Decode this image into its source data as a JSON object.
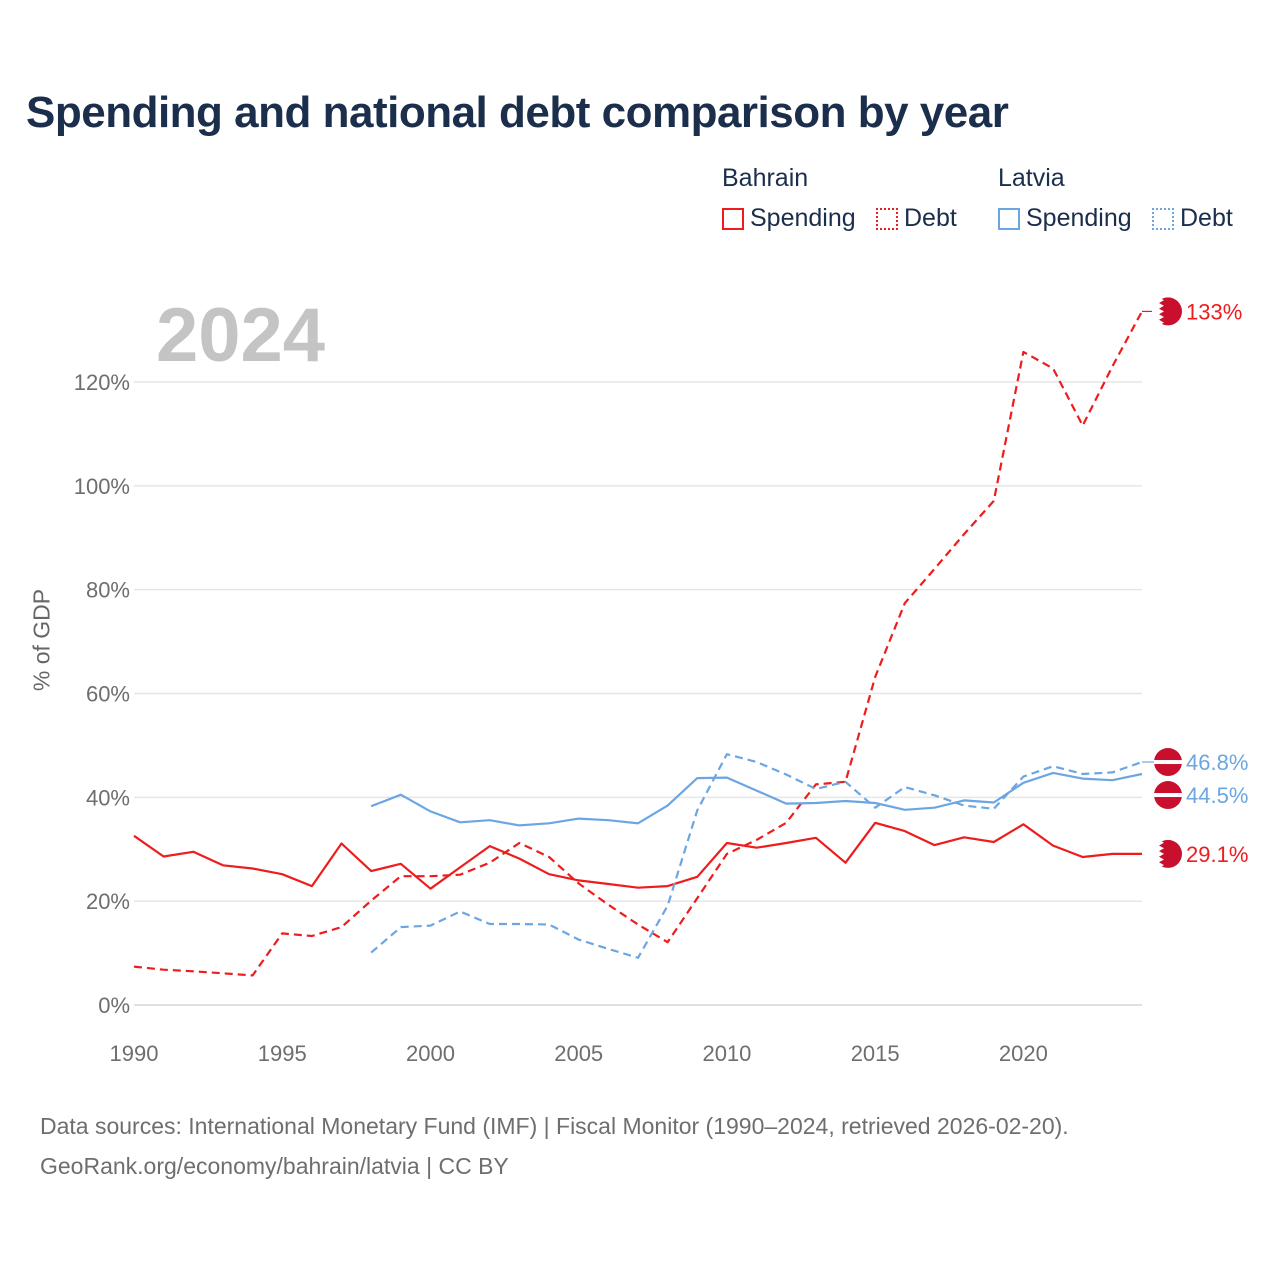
{
  "header": {
    "title": "Spending and national debt comparison by year",
    "year_label": "2024"
  },
  "legend": {
    "group1": {
      "country": "Bahrain",
      "item1": "Spending",
      "item2": "Debt"
    },
    "group2": {
      "country": "Latvia",
      "item1": "Spending",
      "item2": "Debt"
    }
  },
  "footer": {
    "source_line1": "Data sources: International Monetary Fund (IMF) | Fiscal Monitor (1990–2024, retrieved 2026-02-20).",
    "source_line2": "GeoRank.org/economy/bahrain/latvia | CC BY"
  },
  "colors": {
    "bahrain": "#ee1c1c",
    "latvia": "#6ca6e2",
    "flag_red": "#c8102e"
  },
  "chart_data": {
    "type": "line",
    "title": "Spending and national debt comparison by year",
    "xlabel": "",
    "ylabel": "% of GDP",
    "xlim": [
      1990,
      2024
    ],
    "ylim": [
      0,
      135
    ],
    "x_ticks": [
      1990,
      1995,
      2000,
      2005,
      2010,
      2015,
      2020
    ],
    "y_ticks": [
      0,
      20,
      40,
      60,
      80,
      100,
      120
    ],
    "y_tick_labels": [
      "0%",
      "20%",
      "40%",
      "60%",
      "80%",
      "100%",
      "120%"
    ],
    "series": [
      {
        "name": "Bahrain Spending",
        "country": "Bahrain",
        "style": "solid",
        "color": "#ee1c1c",
        "end_label": "29.1%",
        "x": [
          1990,
          1991,
          1992,
          1993,
          1994,
          1995,
          1996,
          1997,
          1998,
          1999,
          2000,
          2001,
          2002,
          2003,
          2004,
          2005,
          2006,
          2007,
          2008,
          2009,
          2010,
          2011,
          2012,
          2013,
          2014,
          2015,
          2016,
          2017,
          2018,
          2019,
          2020,
          2021,
          2022,
          2023,
          2024
        ],
        "values": [
          32.6,
          28.6,
          29.5,
          26.9,
          26.3,
          25.2,
          22.9,
          31.1,
          25.8,
          27.2,
          22.4,
          26.5,
          30.6,
          28.2,
          25.2,
          24.0,
          23.3,
          22.6,
          22.9,
          24.7,
          31.2,
          30.3,
          31.2,
          32.2,
          27.4,
          35.1,
          33.5,
          30.8,
          32.3,
          31.4,
          34.8,
          30.7,
          28.5,
          29.1,
          29.1
        ]
      },
      {
        "name": "Bahrain Debt",
        "country": "Bahrain",
        "style": "dashed",
        "color": "#ee1c1c",
        "end_label": "133%",
        "x": [
          1990,
          1991,
          1992,
          1993,
          1994,
          1995,
          1996,
          1997,
          1998,
          1999,
          2000,
          2001,
          2002,
          2003,
          2004,
          2005,
          2006,
          2007,
          2008,
          2009,
          2010,
          2011,
          2012,
          2013,
          2014,
          2015,
          2016,
          2017,
          2018,
          2019,
          2020,
          2021,
          2022,
          2023,
          2024
        ],
        "values": [
          7.4,
          6.8,
          6.5,
          6.1,
          5.7,
          13.8,
          13.3,
          15.0,
          20.1,
          24.8,
          24.8,
          25.1,
          27.4,
          31.2,
          28.5,
          23.4,
          19.3,
          15.5,
          12.1,
          20.6,
          29.1,
          31.8,
          35.1,
          42.5,
          43.0,
          63.2,
          77.4,
          84.0,
          90.7,
          97.1,
          125.8,
          122.6,
          111.6,
          123.0,
          133.6
        ]
      },
      {
        "name": "Latvia Spending",
        "country": "Latvia",
        "style": "solid",
        "color": "#6ca6e2",
        "end_label": "44.5%",
        "x": [
          1998,
          1999,
          2000,
          2001,
          2002,
          2003,
          2004,
          2005,
          2006,
          2007,
          2008,
          2009,
          2010,
          2011,
          2012,
          2013,
          2014,
          2015,
          2016,
          2017,
          2018,
          2019,
          2020,
          2021,
          2022,
          2023,
          2024
        ],
        "values": [
          38.3,
          40.5,
          37.3,
          35.2,
          35.6,
          34.6,
          35.0,
          35.9,
          35.6,
          35.0,
          38.4,
          43.7,
          43.8,
          41.3,
          38.8,
          38.9,
          39.3,
          38.9,
          37.6,
          38.0,
          39.4,
          39.0,
          42.8,
          44.7,
          43.6,
          43.3,
          44.5
        ]
      },
      {
        "name": "Latvia Debt",
        "country": "Latvia",
        "style": "dashed",
        "color": "#6ca6e2",
        "end_label": "46.8%",
        "x": [
          1998,
          1999,
          2000,
          2001,
          2002,
          2003,
          2004,
          2005,
          2006,
          2007,
          2008,
          2009,
          2010,
          2011,
          2012,
          2013,
          2014,
          2015,
          2016,
          2017,
          2018,
          2019,
          2020,
          2021,
          2022,
          2023,
          2024
        ],
        "values": [
          10.1,
          15.0,
          15.3,
          18.0,
          15.6,
          15.6,
          15.5,
          12.6,
          10.8,
          9.1,
          19.1,
          37.5,
          48.3,
          46.8,
          44.4,
          41.6,
          43.0,
          38.0,
          42.0,
          40.4,
          38.4,
          37.8,
          44.0,
          46.0,
          44.5,
          44.8,
          46.8
        ]
      }
    ]
  }
}
